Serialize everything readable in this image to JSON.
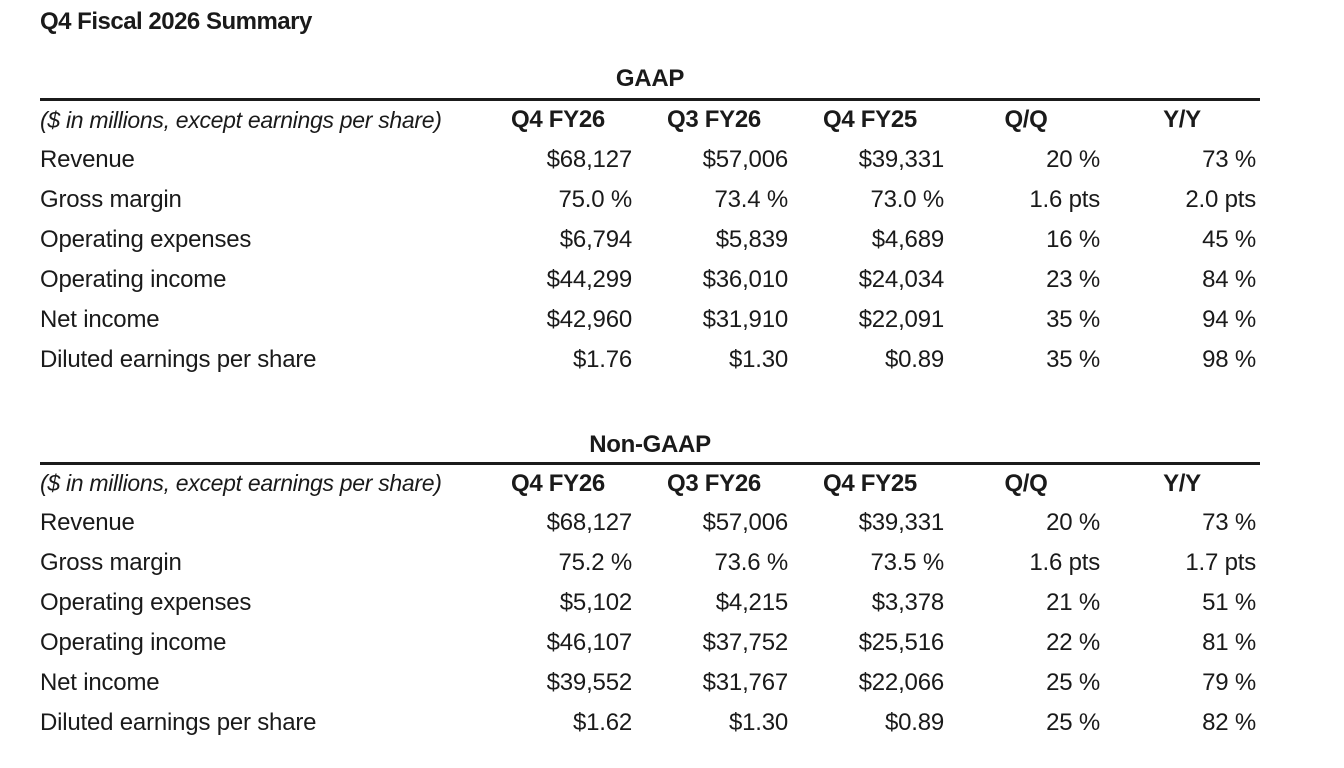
{
  "page": {
    "title": "Q4 Fiscal 2026 Summary"
  },
  "colors": {
    "text": "#1a1a1a",
    "rule": "#1b1b1b",
    "background": "#ffffff"
  },
  "tables": [
    {
      "title": "GAAP",
      "unit_note": "($ in millions, except earnings per share)",
      "columns": [
        "Q4 FY26",
        "Q3 FY26",
        "Q4 FY25",
        "Q/Q",
        "Y/Y"
      ],
      "rows": [
        {
          "label": "Revenue",
          "values": [
            "$68,127",
            "$57,006",
            "$39,331",
            "20 %",
            "73 %"
          ]
        },
        {
          "label": "Gross margin",
          "values": [
            "75.0 %",
            "73.4 %",
            "73.0 %",
            "1.6 pts",
            "2.0 pts"
          ]
        },
        {
          "label": "Operating expenses",
          "values": [
            "$6,794",
            "$5,839",
            "$4,689",
            "16 %",
            "45 %"
          ]
        },
        {
          "label": "Operating income",
          "values": [
            "$44,299",
            "$36,010",
            "$24,034",
            "23 %",
            "84 %"
          ]
        },
        {
          "label": "Net income",
          "values": [
            "$42,960",
            "$31,910",
            "$22,091",
            "35 %",
            "94 %"
          ]
        },
        {
          "label": "Diluted earnings per share",
          "values": [
            "$1.76",
            "$1.30",
            "$0.89",
            "35 %",
            "98 %"
          ]
        }
      ]
    },
    {
      "title": "Non-GAAP",
      "unit_note": "($ in millions, except earnings per share)",
      "columns": [
        "Q4 FY26",
        "Q3 FY26",
        "Q4 FY25",
        "Q/Q",
        "Y/Y"
      ],
      "rows": [
        {
          "label": "Revenue",
          "values": [
            "$68,127",
            "$57,006",
            "$39,331",
            "20 %",
            "73 %"
          ]
        },
        {
          "label": "Gross margin",
          "values": [
            "75.2 %",
            "73.6 %",
            "73.5 %",
            "1.6 pts",
            "1.7 pts"
          ]
        },
        {
          "label": "Operating expenses",
          "values": [
            "$5,102",
            "$4,215",
            "$3,378",
            "21 %",
            "51 %"
          ]
        },
        {
          "label": "Operating income",
          "values": [
            "$46,107",
            "$37,752",
            "$25,516",
            "22 %",
            "81 %"
          ]
        },
        {
          "label": "Net income",
          "values": [
            "$39,552",
            "$31,767",
            "$22,066",
            "25 %",
            "79 %"
          ]
        },
        {
          "label": "Diluted earnings per share",
          "values": [
            "$1.62",
            "$1.30",
            "$0.89",
            "25 %",
            "82 %"
          ]
        }
      ]
    }
  ]
}
